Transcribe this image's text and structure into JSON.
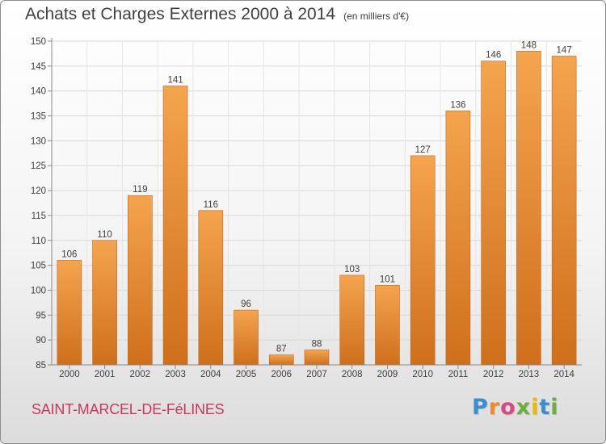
{
  "title": "Achats et Charges Externes 2000 à 2014",
  "unit": "(en milliers d'€)",
  "place": "SAINT-MARCEL-DE-FéLINES",
  "logo": {
    "letters": [
      "P",
      "r",
      "o",
      "x",
      "i",
      "t",
      "i"
    ],
    "colors": [
      "#3b8fd0",
      "#f08a24",
      "#d64a86",
      "#6ab13a",
      "#f2b600",
      "#3b8fd0",
      "#6ab13a"
    ]
  },
  "colors": {
    "bar_light": "#f5a44e",
    "bar_dark": "#cf6f1c",
    "axis": "#8a8a8a",
    "grid": "#d8d8d8",
    "text": "#404040"
  },
  "chart_data": {
    "type": "bar",
    "title": "Achats et Charges Externes 2000 à 2014",
    "xlabel": "",
    "ylabel": "",
    "categories": [
      "2000",
      "2001",
      "2002",
      "2003",
      "2004",
      "2005",
      "2006",
      "2007",
      "2008",
      "2009",
      "2010",
      "2011",
      "2012",
      "2013",
      "2014"
    ],
    "values": [
      106,
      110,
      119,
      141,
      116,
      96,
      87,
      88,
      103,
      101,
      127,
      136,
      146,
      148,
      147
    ],
    "ylim": [
      85,
      150
    ],
    "yticks": [
      85,
      90,
      95,
      100,
      105,
      110,
      115,
      120,
      125,
      130,
      135,
      140,
      145,
      150
    ],
    "grid": true,
    "data_labels": true
  }
}
